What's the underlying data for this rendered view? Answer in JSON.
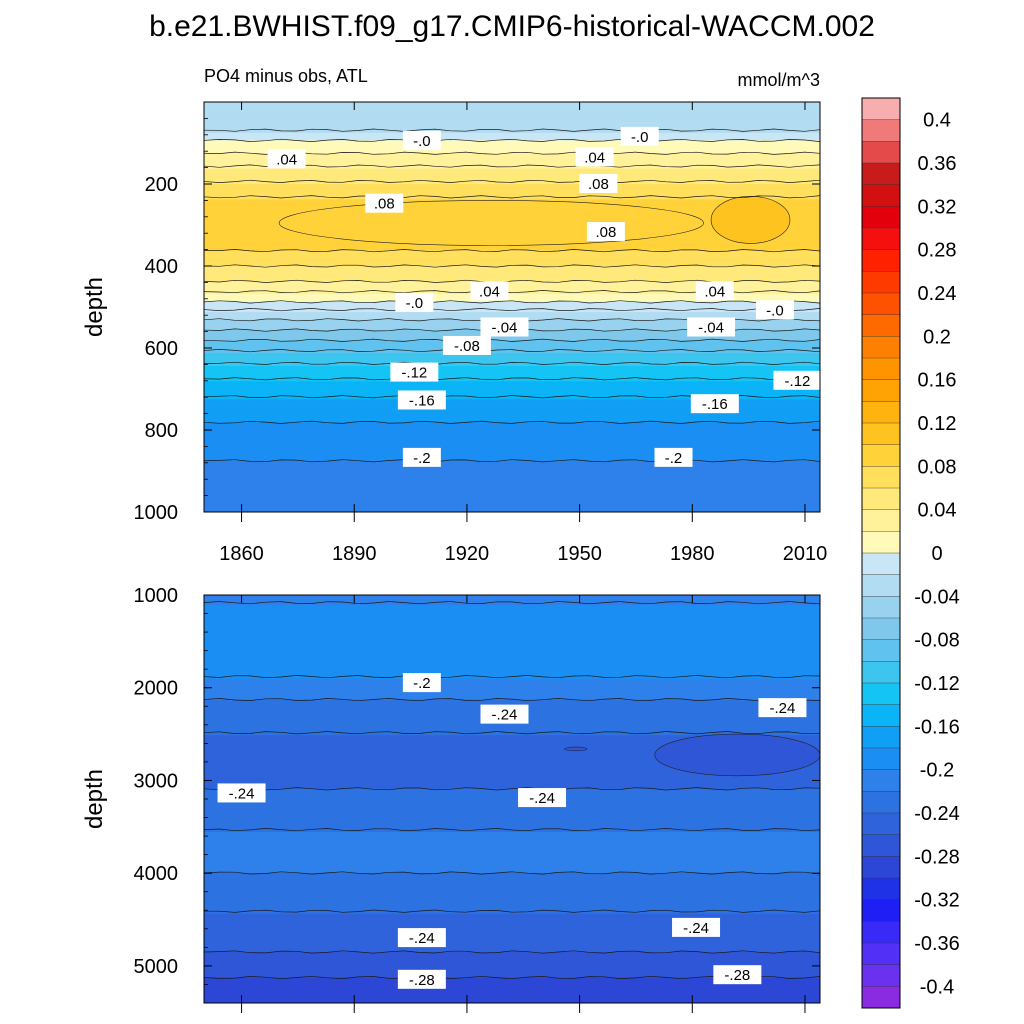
{
  "chart_data": {
    "type": "heatmap",
    "title": "b.e21.BWHIST.f09_g17.CMIP6-historical-WACCM.002",
    "variable_label": "PO4 minus obs, ATL",
    "units": "mmol/m^3",
    "xlim": [
      1850,
      2014
    ],
    "colorbar": {
      "levels": [
        -0.42,
        -0.4,
        -0.38,
        -0.36,
        -0.34,
        -0.32,
        -0.3,
        -0.28,
        -0.26,
        -0.24,
        -0.22,
        -0.2,
        -0.18,
        -0.16,
        -0.14,
        -0.12,
        -0.1,
        -0.08,
        -0.06,
        -0.04,
        -0.02,
        0,
        0.02,
        0.04,
        0.06,
        0.08,
        0.1,
        0.12,
        0.14,
        0.16,
        0.18,
        0.2,
        0.22,
        0.24,
        0.26,
        0.28,
        0.3,
        0.32,
        0.34,
        0.36,
        0.38,
        0.4,
        0.42
      ],
      "colors": [
        "#8a2be2",
        "#6a32ee",
        "#5330f5",
        "#3a2af8",
        "#1f1ff5",
        "#1f32e6",
        "#2c47d6",
        "#3056d8",
        "#2f63db",
        "#2c72e0",
        "#2e80ea",
        "#1a8ef2",
        "#119ff5",
        "#0bb3f7",
        "#14c4f5",
        "#3cc6ef",
        "#60c2ee",
        "#7fc8ec",
        "#99d2ee",
        "#b1dcf2",
        "#c8e6f5",
        "#fffab8",
        "#fff29a",
        "#ffe97a",
        "#ffdf5c",
        "#ffd23a",
        "#ffc31f",
        "#ffb30f",
        "#ffa305",
        "#ff9300",
        "#ff8000",
        "#ff6a00",
        "#ff5200",
        "#ff3a00",
        "#ff2100",
        "#f50f0f",
        "#e3000c",
        "#d21010",
        "#c81c1c",
        "#e44a4a",
        "#f07a7a",
        "#f8aeae"
      ],
      "tick_labels": [
        "0.4",
        "0.36",
        "0.32",
        "0.28",
        "0.24",
        "0.2",
        "0.16",
        "0.12",
        "0.08",
        "0.04",
        "0",
        "-0.04",
        "-0.08",
        "-0.12",
        "-0.16",
        "-0.2",
        "-0.24",
        "-0.28",
        "-0.32",
        "-0.36",
        "-0.4"
      ],
      "tick_values": [
        0.4,
        0.36,
        0.32,
        0.28,
        0.24,
        0.2,
        0.16,
        0.12,
        0.08,
        0.04,
        0,
        -0.04,
        -0.08,
        -0.12,
        -0.16,
        -0.2,
        -0.24,
        -0.28,
        -0.32,
        -0.36,
        -0.4
      ]
    },
    "panels": [
      {
        "name": "upper",
        "ylabel": "depth",
        "ylim": [
          0,
          1000
        ],
        "yticks": [
          200,
          400,
          600,
          800,
          1000
        ],
        "ytick_labels": [
          "200",
          "400",
          "600",
          "800",
          "1000"
        ],
        "xticks": [
          1860,
          1890,
          1920,
          1950,
          1980,
          2010
        ],
        "xtick_labels": [
          "1860",
          "1890",
          "1920",
          "1950",
          "1980",
          "2010"
        ],
        "profile": [
          [
            0,
            -0.04
          ],
          [
            25,
            -0.04
          ],
          [
            60,
            -0.03
          ],
          [
            90,
            -0.005
          ],
          [
            110,
            0.01
          ],
          [
            145,
            0.03
          ],
          [
            180,
            0.05
          ],
          [
            215,
            0.07
          ],
          [
            255,
            0.09
          ],
          [
            300,
            0.095
          ],
          [
            345,
            0.09
          ],
          [
            385,
            0.07
          ],
          [
            420,
            0.05
          ],
          [
            455,
            0.03
          ],
          [
            480,
            0.01
          ],
          [
            500,
            -0.01
          ],
          [
            520,
            -0.03
          ],
          [
            545,
            -0.05
          ],
          [
            575,
            -0.075
          ],
          [
            610,
            -0.1
          ],
          [
            650,
            -0.125
          ],
          [
            700,
            -0.15
          ],
          [
            760,
            -0.175
          ],
          [
            830,
            -0.19
          ],
          [
            900,
            -0.205
          ],
          [
            1000,
            -0.21
          ]
        ],
        "hotspots": [
          {
            "x0": 1985,
            "x1": 2006,
            "y0": 230,
            "y1": 345,
            "value": 0.1
          },
          {
            "x0": 1870,
            "x1": 1983,
            "y0": 240,
            "y1": 350,
            "value": 0.09
          }
        ],
        "contour_labels": [
          {
            "text": "-.0",
            "x": 1908,
            "y": 95
          },
          {
            "text": "-.0",
            "x": 1966,
            "y": 85
          },
          {
            "text": ".04",
            "x": 1872,
            "y": 140
          },
          {
            "text": ".04",
            "x": 1954,
            "y": 135
          },
          {
            "text": ".08",
            "x": 1955,
            "y": 200
          },
          {
            "text": ".08",
            "x": 1898,
            "y": 248
          },
          {
            "text": ".08",
            "x": 1957,
            "y": 317
          },
          {
            "text": ".04",
            "x": 1926,
            "y": 462
          },
          {
            "text": ".04",
            "x": 1986,
            "y": 462
          },
          {
            "text": "-.0",
            "x": 1906,
            "y": 490
          },
          {
            "text": "-.0",
            "x": 2002,
            "y": 508
          },
          {
            "text": "-.04",
            "x": 1930,
            "y": 550
          },
          {
            "text": "-.04",
            "x": 1985,
            "y": 550
          },
          {
            "text": "-.08",
            "x": 1920,
            "y": 595
          },
          {
            "text": "-.12",
            "x": 1906,
            "y": 660
          },
          {
            "text": "-.12",
            "x": 2008,
            "y": 680
          },
          {
            "text": "-.16",
            "x": 1908,
            "y": 728
          },
          {
            "text": "-.16",
            "x": 1986,
            "y": 737
          },
          {
            "text": "-.2",
            "x": 1908,
            "y": 868
          },
          {
            "text": "-.2",
            "x": 1975,
            "y": 868
          }
        ]
      },
      {
        "name": "lower",
        "ylabel": "depth",
        "ylim": [
          1000,
          5400
        ],
        "yticks": [
          1000,
          2000,
          3000,
          4000,
          5000
        ],
        "ytick_labels": [
          "1000",
          "2000",
          "3000",
          "4000",
          "5000"
        ],
        "xticks": [
          1860,
          1890,
          1920,
          1950,
          1980,
          2010
        ],
        "xtick_labels": [],
        "profile": [
          [
            1000,
            -0.205
          ],
          [
            1300,
            -0.19
          ],
          [
            1600,
            -0.185
          ],
          [
            1900,
            -0.2
          ],
          [
            2200,
            -0.225
          ],
          [
            2600,
            -0.245
          ],
          [
            3100,
            -0.24
          ],
          [
            3400,
            -0.225
          ],
          [
            3700,
            -0.215
          ],
          [
            4000,
            -0.22
          ],
          [
            4300,
            -0.235
          ],
          [
            4700,
            -0.25
          ],
          [
            5000,
            -0.27
          ],
          [
            5400,
            -0.3
          ]
        ],
        "hotspots": [
          {
            "x0": 1970,
            "x1": 2014,
            "y0": 2500,
            "y1": 2950,
            "value": -0.265
          },
          {
            "x0": 1946,
            "x1": 1952,
            "y0": 2640,
            "y1": 2680,
            "value": -0.265
          }
        ],
        "contour_labels": [
          {
            "text": "-.2",
            "x": 1908,
            "y": 1950
          },
          {
            "text": "-.24",
            "x": 1930,
            "y": 2290
          },
          {
            "text": "-.24",
            "x": 2004,
            "y": 2220
          },
          {
            "text": "-.24",
            "x": 1860,
            "y": 3140
          },
          {
            "text": "-.24",
            "x": 1940,
            "y": 3190
          },
          {
            "text": "-.24",
            "x": 1908,
            "y": 4700
          },
          {
            "text": "-.24",
            "x": 1981,
            "y": 4590
          },
          {
            "text": "-.28",
            "x": 1908,
            "y": 5150
          },
          {
            "text": "-.28",
            "x": 1992,
            "y": 5100
          }
        ]
      }
    ]
  }
}
